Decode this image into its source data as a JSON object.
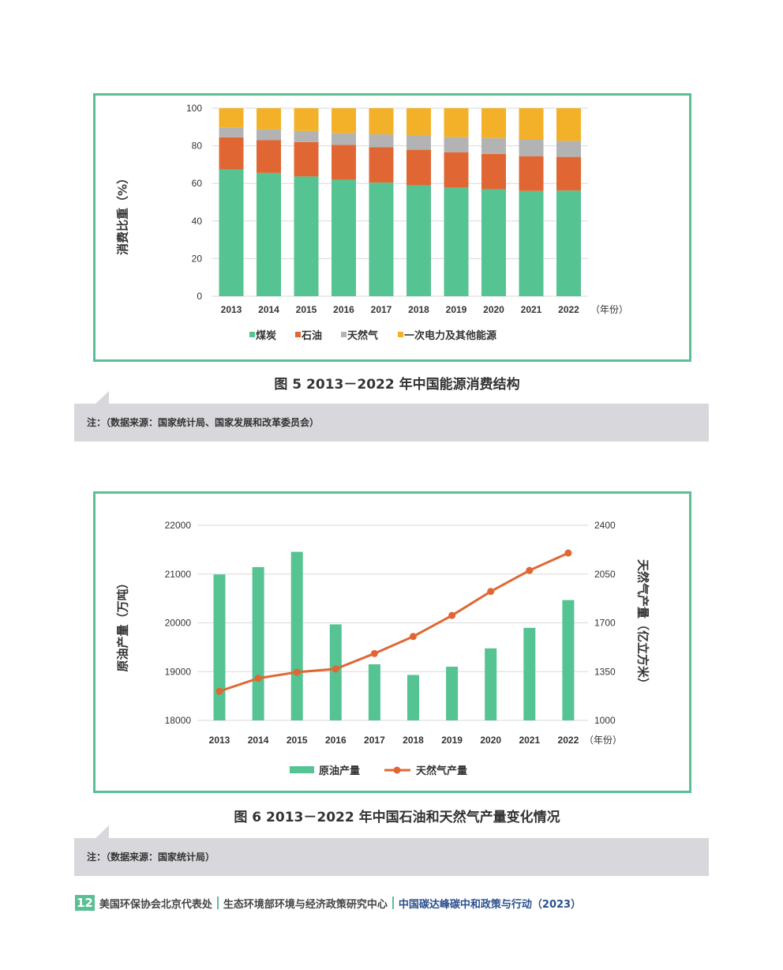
{
  "figure5": {
    "caption": "图 5  2013－2022 年中国能源消费结构",
    "note": "注：（数据来源：国家统计局、国家发展和改革委员会）",
    "chart_data": {
      "type": "bar",
      "stacked": true,
      "title": "",
      "ylabel": "消费比重（%）",
      "xlabel": "（年份）",
      "ylim": [
        0,
        100
      ],
      "yticks": [
        0,
        20,
        40,
        60,
        80,
        100
      ],
      "categories": [
        "2013",
        "2014",
        "2015",
        "2016",
        "2017",
        "2018",
        "2019",
        "2020",
        "2021",
        "2022"
      ],
      "series": [
        {
          "name": "煤炭",
          "color": "#55c392",
          "values": [
            67.4,
            65.6,
            63.7,
            62.0,
            60.4,
            59.0,
            57.7,
            56.9,
            56.0,
            56.2
          ]
        },
        {
          "name": "石油",
          "color": "#e06734",
          "values": [
            17.1,
            17.4,
            18.3,
            18.5,
            18.8,
            18.9,
            18.9,
            18.8,
            18.5,
            17.9
          ]
        },
        {
          "name": "天然气",
          "color": "#b3b3b3",
          "values": [
            5.3,
            5.7,
            5.9,
            6.2,
            6.9,
            7.6,
            8.0,
            8.4,
            8.9,
            8.5
          ]
        },
        {
          "name": "一次电力及其他能源",
          "color": "#f2b128",
          "values": [
            10.2,
            11.3,
            12.1,
            13.3,
            13.9,
            14.5,
            15.4,
            15.9,
            16.6,
            17.4
          ]
        }
      ],
      "legend": "bottom",
      "grid": true
    }
  },
  "figure6": {
    "caption": "图 6  2013－2022 年中国石油和天然气产量变化情况",
    "note": "注：（数据来源：国家统计局）",
    "chart_data": {
      "type": "bar+line",
      "xlabel": "（年份）",
      "ylabel_left": "原油产量（万吨）",
      "ylabel_right": "天然气产量（亿立方米）",
      "ylim_left": [
        18000,
        22000
      ],
      "yticks_left": [
        18000,
        19000,
        20000,
        21000,
        22000
      ],
      "ylim_right": [
        1000,
        2400
      ],
      "yticks_right": [
        1000,
        1350,
        1700,
        2050,
        2400
      ],
      "categories": [
        "2013",
        "2014",
        "2015",
        "2016",
        "2017",
        "2018",
        "2019",
        "2020",
        "2021",
        "2022"
      ],
      "series": [
        {
          "name": "原油产量",
          "type": "bar",
          "axis": "left",
          "color": "#55c392",
          "values": [
            20992,
            21143,
            21456,
            19969,
            19151,
            18932,
            19101,
            19477,
            19898,
            20467
          ]
        },
        {
          "name": "天然气产量",
          "type": "line",
          "axis": "right",
          "color": "#e06734",
          "values": [
            1209,
            1302,
            1346,
            1369,
            1480,
            1602,
            1753,
            1925,
            2076,
            2201
          ]
        }
      ],
      "legend": "bottom",
      "grid": true
    }
  },
  "footer": {
    "page_number": "12",
    "org1": "美国环保协会北京代表处",
    "org2": "生态环境部环境与经济政策研究中心",
    "title": "中国碳达峰碳中和政策与行动（2023）"
  }
}
